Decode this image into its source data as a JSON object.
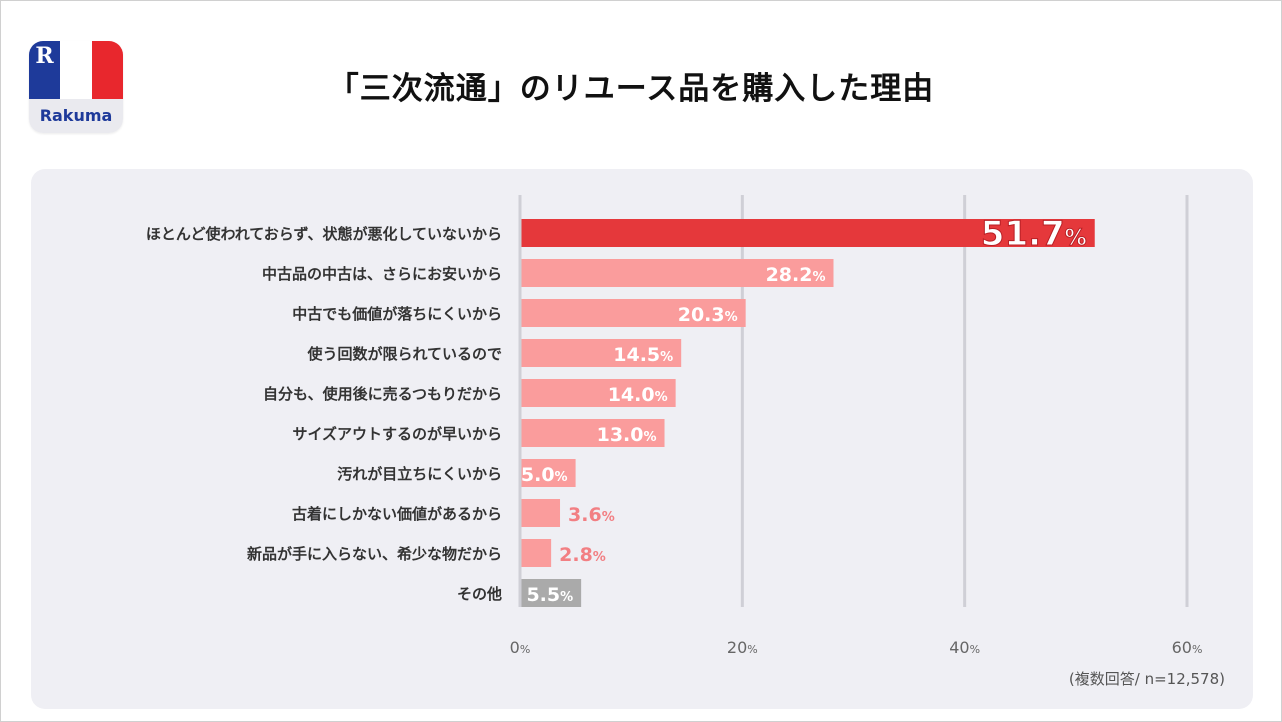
{
  "logo": {
    "mark": "R",
    "name": "Rakuma"
  },
  "title": "「三次流通」のリユース品を購入した理由",
  "note": "(複数回答/ n=12,578)",
  "colors": {
    "highlight": "#e5383b",
    "bar": "#fa9c9c",
    "other": "#aaaaaa",
    "label_inside": "#ffffff",
    "label_outside": "#f27f83",
    "grid": "#cfcfd6",
    "text": "#333333"
  },
  "chart_data": {
    "type": "bar",
    "orientation": "horizontal",
    "title": "「三次流通」のリユース品を購入した理由",
    "categories": [
      "ほとんど使われておらず、状態が悪化していないから",
      "中古品の中古は、さらにお安いから",
      "中古でも価値が落ちにくいから",
      "使う回数が限られているので",
      "自分も、使用後に売るつもりだから",
      "サイズアウトするのが早いから",
      "汚れが目立ちにくいから",
      "古着にしかない価値があるから",
      "新品が手に入らない、希少な物だから",
      "その他"
    ],
    "values": [
      51.7,
      28.2,
      20.3,
      14.5,
      14.0,
      13.0,
      5.0,
      3.6,
      2.8,
      5.5
    ],
    "value_labels": [
      "51.7",
      "28.2",
      "20.3",
      "14.5",
      "14.0",
      "13.0",
      "5.0",
      "3.6",
      "2.8",
      "5.5"
    ],
    "unit": "%",
    "xlim": [
      0,
      60
    ],
    "xticks": [
      0,
      20,
      40,
      60
    ],
    "xtick_labels": [
      "0",
      "20",
      "40",
      "60"
    ],
    "grid": true,
    "xlabel": "",
    "ylabel": ""
  }
}
